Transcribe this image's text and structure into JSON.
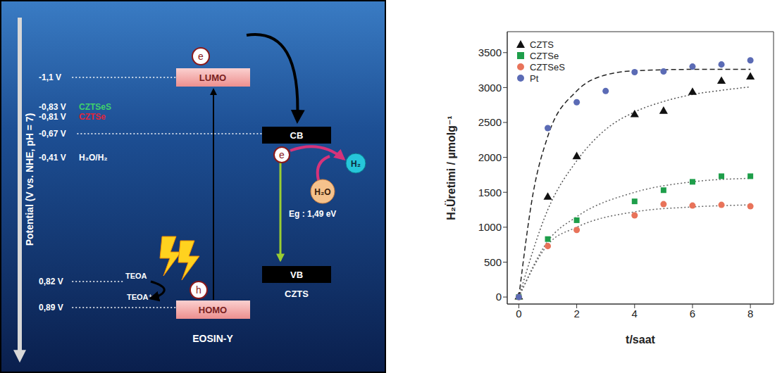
{
  "diagram": {
    "axis_label": "Potential (V vs. NHE, pH = 7)",
    "ticks": [
      {
        "label": "-1,1 V"
      },
      {
        "label": "-0,83 V",
        "tag": "CZTSeS",
        "tag_color": "#3fd16b"
      },
      {
        "label": "-0,81 V",
        "tag": "CZTSe",
        "tag_color": "#e0243b"
      },
      {
        "label": "-0,67 V"
      },
      {
        "label": "-0,41 V",
        "tag": "H₂O/H₂"
      },
      {
        "label": "0,82 V"
      },
      {
        "label": "0,89 V"
      }
    ],
    "lumo": "LUMO",
    "homo": "HOMO",
    "dye": "EOSIN-Y",
    "cb": "CB",
    "vb": "VB",
    "semiconductor": "CZTS",
    "band_gap": "Eg : 1,49 eV",
    "electron": "e",
    "hole": "h",
    "h2": "H₂",
    "h2o": "H₂O",
    "donor": "TEOA",
    "donor_oxidized": "TEOA⁺"
  },
  "chart_data": {
    "type": "scatter",
    "x_label": "t/saat",
    "y_label": "H₂Üretimi / µmolg⁻¹",
    "xlim": [
      -0.4,
      8.8
    ],
    "ylim": [
      -100,
      3800
    ],
    "xticks": [
      0,
      2,
      4,
      6,
      8
    ],
    "yticks": [
      0,
      500,
      1000,
      1500,
      2000,
      2500,
      3000,
      3500
    ],
    "legend": "upper left",
    "series": [
      {
        "name": "CZTS",
        "color": "#111111",
        "marker": "triangle",
        "x": [
          0,
          1,
          2,
          4,
          5,
          6,
          7,
          8
        ],
        "values": [
          0,
          1430,
          2010,
          2610,
          2660,
          2930,
          3090,
          3150
        ],
        "fit": {
          "color": "#555555",
          "line_style": "dotted",
          "x": [
            0,
            1,
            2,
            3,
            4,
            5,
            6,
            7,
            8
          ],
          "values": [
            0,
            1250,
            1950,
            2400,
            2650,
            2800,
            2900,
            2960,
            3010
          ]
        }
      },
      {
        "name": "CZTSe",
        "color": "#1e9e4a",
        "marker": "square",
        "x": [
          0,
          1,
          2,
          4,
          5,
          6,
          7,
          8
        ],
        "values": [
          0,
          830,
          1100,
          1370,
          1530,
          1650,
          1730,
          1730
        ],
        "fit": {
          "color": "#666666",
          "line_style": "dotted",
          "x": [
            0,
            1,
            2,
            4,
            6,
            8
          ],
          "values": [
            0,
            800,
            1150,
            1500,
            1650,
            1700
          ]
        }
      },
      {
        "name": "CZTSeS",
        "color": "#e8735a",
        "marker": "circle",
        "x": [
          0,
          1,
          2,
          4,
          5,
          6,
          7,
          8
        ],
        "values": [
          0,
          730,
          960,
          1170,
          1330,
          1310,
          1320,
          1300
        ],
        "fit": {
          "color": "#666666",
          "line_style": "dotted",
          "x": [
            0,
            1,
            2,
            4,
            6,
            8
          ],
          "values": [
            0,
            750,
            1000,
            1220,
            1290,
            1320
          ]
        }
      },
      {
        "name": "Pt",
        "color": "#5b6bb5",
        "marker": "circle",
        "x": [
          0,
          1,
          2,
          3,
          4,
          5,
          6,
          7,
          8
        ],
        "values": [
          0,
          2420,
          2790,
          2950,
          3220,
          3230,
          3300,
          3330,
          3390
        ],
        "fit": {
          "color": "#222222",
          "line_style": "dashed",
          "x": [
            0,
            0.5,
            1,
            2,
            3,
            4,
            6,
            8
          ],
          "values": [
            0,
            1500,
            2300,
            2950,
            3180,
            3240,
            3260,
            3260
          ]
        }
      }
    ]
  }
}
